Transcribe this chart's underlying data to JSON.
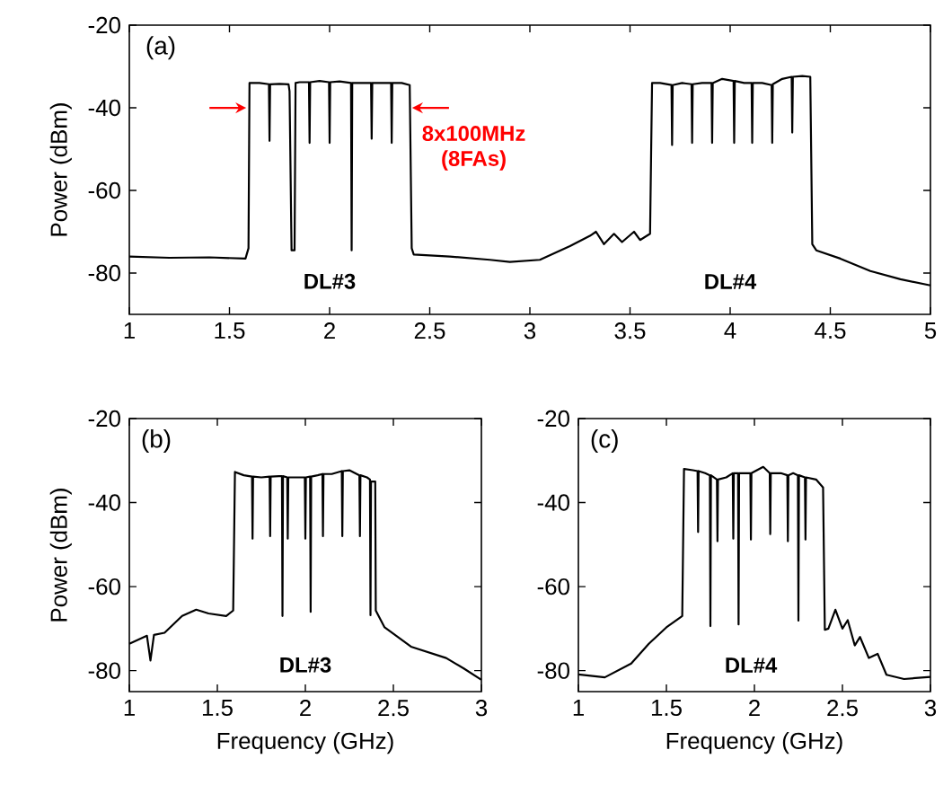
{
  "chart_data": [
    {
      "type": "line",
      "ylabel": "Power (dBm)",
      "annotations": [
        "(a)",
        "DL#3",
        "DL#4",
        "8x100MHz (8FAs)"
      ],
      "x": [
        1.0,
        1.2,
        1.4,
        1.58,
        1.595,
        1.6,
        1.65,
        1.697,
        1.7,
        1.703,
        1.75,
        1.795,
        1.8,
        1.81,
        1.825,
        1.83,
        1.85,
        1.897,
        1.9,
        1.903,
        1.95,
        1.997,
        2.0,
        2.003,
        2.05,
        2.107,
        2.11,
        2.113,
        2.16,
        2.207,
        2.21,
        2.213,
        2.26,
        2.307,
        2.31,
        2.313,
        2.36,
        2.4,
        2.41,
        2.42,
        2.6,
        2.8,
        2.9,
        3.05,
        3.2,
        3.3,
        3.33,
        3.37,
        3.42,
        3.46,
        3.52,
        3.55,
        3.6,
        3.61,
        3.65,
        3.707,
        3.71,
        3.713,
        3.76,
        3.807,
        3.81,
        3.813,
        3.86,
        3.907,
        3.91,
        3.913,
        3.96,
        4.017,
        4.02,
        4.023,
        4.07,
        4.107,
        4.11,
        4.113,
        4.16,
        4.207,
        4.21,
        4.213,
        4.26,
        4.307,
        4.31,
        4.313,
        4.36,
        4.4,
        4.41,
        4.43,
        4.55,
        4.7,
        4.85,
        5.0
      ],
      "series": [
        {
          "color": "#000000",
          "values": [
            -76,
            -76.3,
            -76.2,
            -76.5,
            -74,
            -34,
            -34,
            -34.3,
            -48,
            -34.3,
            -34.2,
            -34.3,
            -36,
            -74.5,
            -74.5,
            -34,
            -33.8,
            -33.8,
            -48.5,
            -33.8,
            -33.5,
            -33.8,
            -48.5,
            -33.8,
            -33.6,
            -34,
            -74.5,
            -34,
            -34,
            -34,
            -47.5,
            -34,
            -34,
            -34,
            -48.5,
            -34,
            -34,
            -34.5,
            -74,
            -75.5,
            -76,
            -76.8,
            -77.3,
            -76.8,
            -73.5,
            -71,
            -70,
            -73,
            -70.5,
            -72.5,
            -70,
            -72,
            -70.5,
            -34,
            -34,
            -34.5,
            -49,
            -34.5,
            -34,
            -34.3,
            -48.5,
            -34.3,
            -34,
            -34,
            -48.5,
            -34,
            -33,
            -33.5,
            -48.5,
            -33.5,
            -34,
            -34,
            -48.5,
            -34,
            -34,
            -34.5,
            -48.5,
            -34.3,
            -33,
            -32.5,
            -46,
            -32.5,
            -32.3,
            -32.5,
            -73,
            -74.5,
            -76.5,
            -79.5,
            -81.5,
            -83
          ]
        }
      ],
      "xlim": [
        1,
        5
      ],
      "xticks": [
        1,
        1.5,
        2,
        2.5,
        3,
        3.5,
        4,
        4.5,
        5
      ],
      "ylim": [
        -90,
        -20
      ],
      "yticks": [
        -80,
        -60,
        -40,
        -20
      ]
    },
    {
      "type": "line",
      "xlabel": "Frequency (GHz)",
      "ylabel": "Power (dBm)",
      "annotations": [
        "(b)",
        "DL#3"
      ],
      "x": [
        1.0,
        1.1,
        1.12,
        1.14,
        1.2,
        1.3,
        1.38,
        1.45,
        1.55,
        1.59,
        1.6,
        1.65,
        1.697,
        1.7,
        1.703,
        1.75,
        1.797,
        1.8,
        1.803,
        1.85,
        1.867,
        1.87,
        1.873,
        1.897,
        1.9,
        1.903,
        1.95,
        1.997,
        2.0,
        2.003,
        2.027,
        2.03,
        2.033,
        2.07,
        2.097,
        2.1,
        2.103,
        2.15,
        2.207,
        2.21,
        2.213,
        2.25,
        2.307,
        2.31,
        2.313,
        2.35,
        2.367,
        2.37,
        2.373,
        2.397,
        2.4,
        2.45,
        2.6,
        2.8,
        2.9,
        3.0
      ],
      "series": [
        {
          "color": "#000000",
          "values": [
            -73.6,
            -71.7,
            -77.6,
            -71.5,
            -71,
            -67,
            -65.5,
            -66.4,
            -67,
            -65.7,
            -32.7,
            -33.5,
            -33.8,
            -48.6,
            -33.8,
            -34,
            -33.8,
            -48,
            -33.8,
            -33.7,
            -33.7,
            -67,
            -33.7,
            -34,
            -48.6,
            -34,
            -34,
            -34,
            -48.6,
            -34,
            -33.8,
            -66,
            -33.8,
            -33.5,
            -33.2,
            -48,
            -33.2,
            -33.2,
            -32.5,
            -48,
            -32.5,
            -32.3,
            -33.5,
            -48,
            -33.5,
            -34,
            -34.5,
            -66.8,
            -35,
            -35,
            -65.7,
            -69.7,
            -74.3,
            -77,
            -79.5,
            -82.2
          ]
        }
      ],
      "xlim": [
        1,
        3
      ],
      "xticks": [
        1,
        1.5,
        2,
        2.5,
        3
      ],
      "ylim": [
        -85,
        -20
      ],
      "yticks": [
        -80,
        -60,
        -40,
        -20
      ]
    },
    {
      "type": "line",
      "xlabel": "Frequency (GHz)",
      "annotations": [
        "(c)",
        "DL#4"
      ],
      "x": [
        1.0,
        1.15,
        1.3,
        1.4,
        1.5,
        1.59,
        1.6,
        1.65,
        1.677,
        1.68,
        1.683,
        1.72,
        1.747,
        1.75,
        1.753,
        1.787,
        1.79,
        1.793,
        1.84,
        1.877,
        1.88,
        1.883,
        1.907,
        1.91,
        1.913,
        1.95,
        1.977,
        1.98,
        1.983,
        2.05,
        2.087,
        2.09,
        2.093,
        2.15,
        2.187,
        2.19,
        2.193,
        2.22,
        2.247,
        2.25,
        2.253,
        2.287,
        2.29,
        2.293,
        2.35,
        2.39,
        2.4,
        2.42,
        2.46,
        2.5,
        2.53,
        2.57,
        2.6,
        2.65,
        2.7,
        2.75,
        2.85,
        3.0
      ],
      "series": [
        {
          "color": "#000000",
          "values": [
            -80.9,
            -81.6,
            -78.3,
            -73.6,
            -69.7,
            -67,
            -32,
            -32.3,
            -32.5,
            -47,
            -32.5,
            -33,
            -33.5,
            -69.4,
            -33.5,
            -34.5,
            -49.2,
            -34.5,
            -34,
            -33,
            -48.6,
            -33,
            -33,
            -69,
            -33,
            -33,
            -33,
            -48.8,
            -33,
            -31.5,
            -33,
            -47.5,
            -33,
            -33,
            -33.5,
            -49.2,
            -33.5,
            -33,
            -33.5,
            -68.1,
            -33.5,
            -34,
            -48.8,
            -34,
            -34.5,
            -36.4,
            -70.3,
            -70,
            -65.5,
            -70,
            -68,
            -74,
            -72,
            -77,
            -76,
            -81,
            -82,
            -81.5
          ]
        }
      ],
      "xlim": [
        1,
        3
      ],
      "xticks": [
        1,
        1.5,
        2,
        2.5,
        3
      ],
      "ylim": [
        -85,
        -20
      ],
      "yticks": [
        -80,
        -60,
        -40,
        -20
      ]
    }
  ]
}
